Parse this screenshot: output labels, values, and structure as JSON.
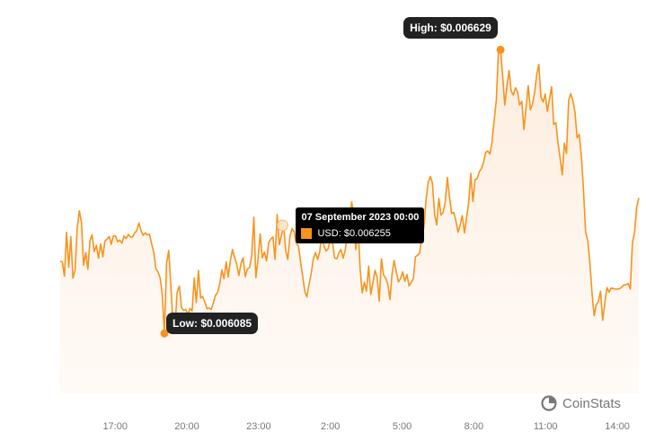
{
  "chart_data": {
    "type": "area",
    "x_labels": [
      "17:00",
      "20:00",
      "23:00",
      "2:00",
      "5:00",
      "8:00",
      "11:00",
      "14:00"
    ],
    "x_label_hours": [
      17,
      20,
      23,
      26,
      29,
      32,
      35,
      38
    ],
    "x_start_hour": 14.7,
    "x_end_hour": 38.9,
    "ylim": [
      0.00597,
      0.00669
    ],
    "series": [
      {
        "values": [
          0.006224,
          0.006222,
          0.006195,
          0.006279,
          0.006212,
          0.006271,
          0.006191,
          0.006207,
          0.006286,
          0.00632,
          0.006298,
          0.006216,
          0.00624,
          0.006208,
          0.006263,
          0.006274,
          0.006242,
          0.006254,
          0.006229,
          0.006257,
          0.006232,
          0.006262,
          0.006266,
          0.006271,
          0.006256,
          0.006272,
          0.006272,
          0.006261,
          0.006264,
          0.006258,
          0.006272,
          0.006267,
          0.006275,
          0.00627,
          0.00627,
          0.006278,
          0.006282,
          0.006297,
          0.006282,
          0.006273,
          0.006278,
          0.006274,
          0.006275,
          0.006257,
          0.00624,
          0.006209,
          0.006203,
          0.006191,
          0.006159,
          0.006085,
          0.006219,
          0.006244,
          0.006178,
          0.006106,
          0.006102,
          0.006164,
          0.006176,
          0.006135,
          0.006129,
          0.006131,
          0.006121,
          0.006133,
          0.006128,
          0.006191,
          0.006144,
          0.006206,
          0.006153,
          0.006156,
          0.006145,
          0.006132,
          0.006134,
          0.006131,
          0.006144,
          0.006158,
          0.006164,
          0.00618,
          0.006207,
          0.00619,
          0.006222,
          0.006193,
          0.006225,
          0.006246,
          0.006231,
          0.006217,
          0.006196,
          0.00622,
          0.00623,
          0.006194,
          0.006209,
          0.006211,
          0.006234,
          0.006308,
          0.006192,
          0.006228,
          0.006276,
          0.00623,
          0.006241,
          0.006224,
          0.006259,
          0.006266,
          0.00627,
          0.006227,
          0.006313,
          0.006255,
          0.006273,
          0.006292,
          0.006244,
          0.006227,
          0.006271,
          0.006286,
          0.00628,
          0.006257,
          0.006253,
          0.006223,
          0.006194,
          0.006165,
          0.006155,
          0.00618,
          0.006201,
          0.006228,
          0.00624,
          0.006227,
          0.006242,
          0.00628,
          0.006252,
          0.006243,
          0.006248,
          0.006265,
          0.00626,
          0.00623,
          0.006228,
          0.00624,
          0.006246,
          0.006229,
          0.006245,
          0.006275,
          0.006295,
          0.006337,
          0.006314,
          0.006246,
          0.006291,
          0.006209,
          0.006163,
          0.006183,
          0.006166,
          0.006214,
          0.00616,
          0.006182,
          0.006206,
          0.006192,
          0.006147,
          0.006228,
          0.006197,
          0.006191,
          0.00618,
          0.00615,
          0.0062,
          0.006225,
          0.006203,
          0.006184,
          0.00619,
          0.006203,
          0.006185,
          0.006198,
          0.006176,
          0.006183,
          0.00619,
          0.006232,
          0.006235,
          0.006239,
          0.006271,
          0.00629,
          0.006342,
          0.006375,
          0.006386,
          0.006373,
          0.006314,
          0.006293,
          0.006344,
          0.006312,
          0.006317,
          0.006336,
          0.006384,
          0.006347,
          0.006315,
          0.006317,
          0.006301,
          0.006279,
          0.006292,
          0.006311,
          0.006278,
          0.006306,
          0.006335,
          0.006392,
          0.006338,
          0.00638,
          0.006382,
          0.006395,
          0.006401,
          0.006413,
          0.006432,
          0.006435,
          0.006429,
          0.006452,
          0.006494,
          0.006532,
          0.006623,
          0.006629,
          0.006578,
          0.006523,
          0.006559,
          0.006589,
          0.00655,
          0.006542,
          0.006556,
          0.006549,
          0.006523,
          0.00653,
          0.006476,
          0.006518,
          0.00656,
          0.006514,
          0.006524,
          0.006547,
          0.006582,
          0.006601,
          0.006538,
          0.006529,
          0.006544,
          0.006511,
          0.006535,
          0.006558,
          0.006486,
          0.006489,
          0.006451,
          0.006421,
          0.006389,
          0.00645,
          0.00643,
          0.006532,
          0.006545,
          0.006532,
          0.006509,
          0.00646,
          0.006467,
          0.006424,
          0.006361,
          0.006279,
          0.006263,
          0.006221,
          0.006163,
          0.006119,
          0.00614,
          0.006146,
          0.006166,
          0.00611,
          0.006143,
          0.006173,
          0.006164,
          0.006172,
          0.006171,
          0.00617,
          0.00617,
          0.006171,
          0.006174,
          0.006178,
          0.006178,
          0.006181,
          0.00617,
          0.006259,
          0.006279,
          0.006327,
          0.006345
        ]
      }
    ],
    "annotations": {
      "high": "High: $0.006629",
      "low": "Low: $0.006085",
      "tooltip_date": "07 September 2023 00:00",
      "tooltip_value": "USD: $0.006255"
    },
    "line_color": "#f7931e",
    "fill_color": "#fff6ee",
    "grid": false,
    "legend": "none"
  },
  "brand": {
    "name": "CoinStats"
  }
}
